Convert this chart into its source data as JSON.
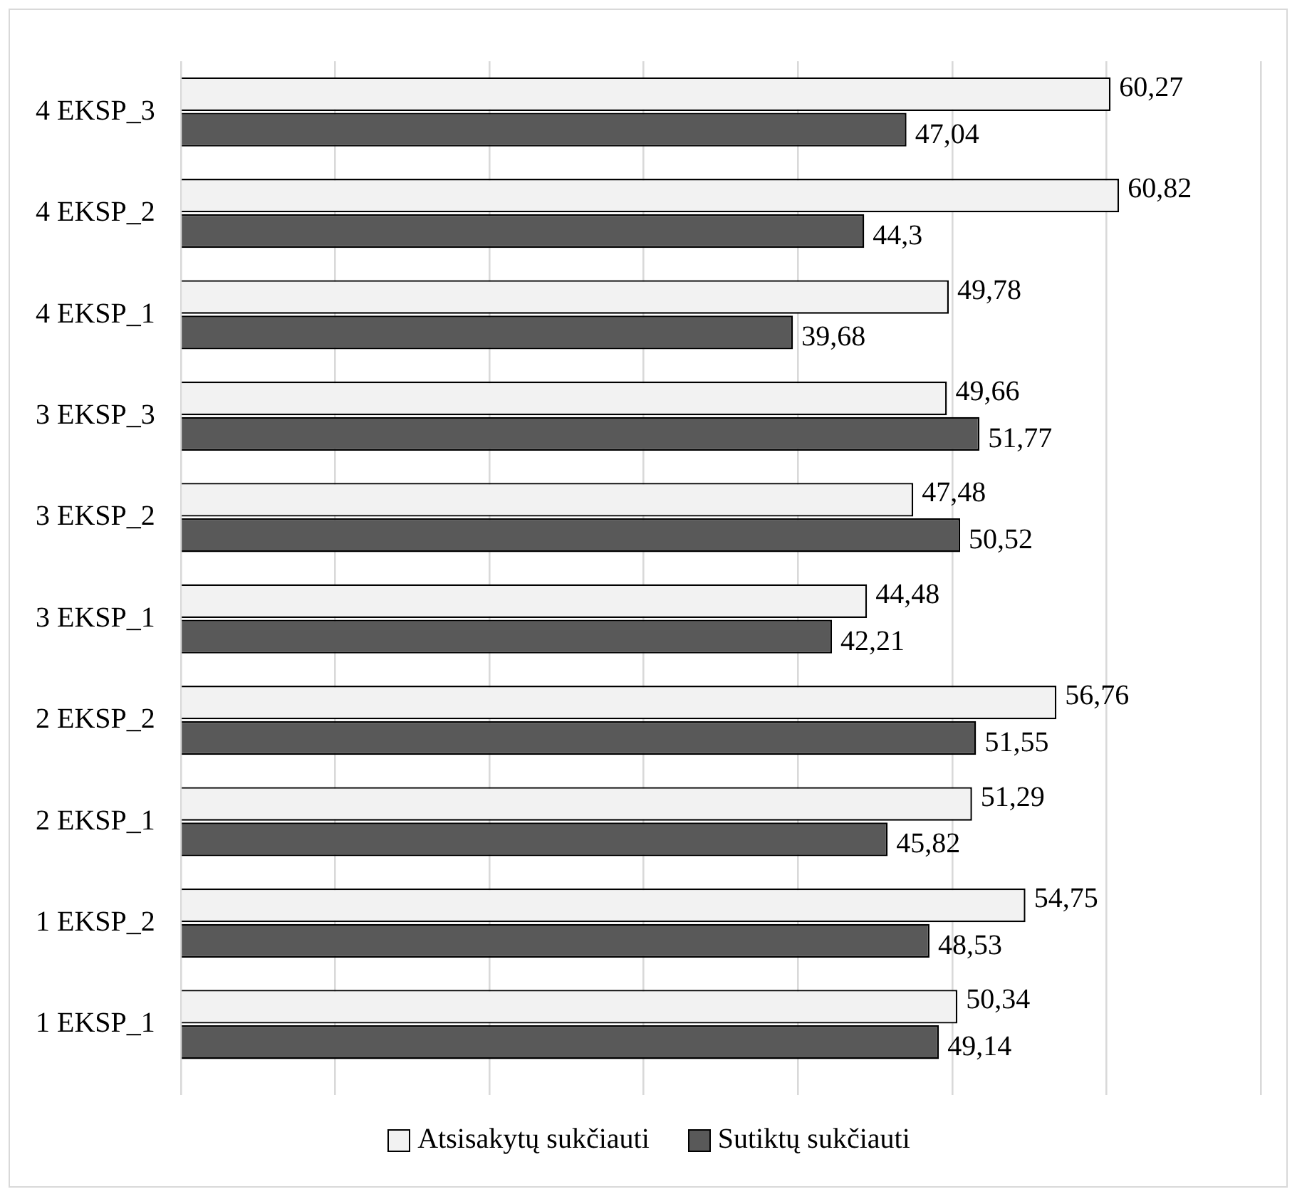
{
  "chart_data": {
    "type": "bar",
    "orientation": "horizontal",
    "categories": [
      "4 EKSP_3",
      "4 EKSP_2",
      "4 EKSP_1",
      "3 EKSP_3",
      "3 EKSP_2",
      "3 EKSP_1",
      "2 EKSP_2",
      "2 EKSP_1",
      "1 EKSP_2",
      "1 EKSP_1"
    ],
    "series": [
      {
        "name": "Atsisakytų sukčiauti",
        "color": "#f2f2f2",
        "values": [
          60.27,
          60.82,
          49.78,
          49.66,
          47.48,
          44.48,
          56.76,
          51.29,
          54.75,
          50.34
        ],
        "value_labels": [
          "60,27",
          "60,82",
          "49,78",
          "49,66",
          "47,48",
          "44,48",
          "56,76",
          "51,29",
          "54,75",
          "50,34"
        ]
      },
      {
        "name": "Sutiktų sukčiauti",
        "color": "#595959",
        "values": [
          47.04,
          44.3,
          39.68,
          51.77,
          50.52,
          42.21,
          51.55,
          45.82,
          48.53,
          49.14
        ],
        "value_labels": [
          "47,04",
          "44,3",
          "39,68",
          "51,77",
          "50,52",
          "42,21",
          "51,55",
          "45,82",
          "48,53",
          "49,14"
        ]
      }
    ],
    "tick_labels": "y",
    "grid": "x",
    "legend": "bottom"
  }
}
